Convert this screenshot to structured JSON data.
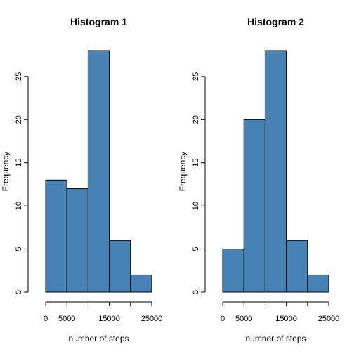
{
  "chart_data": [
    {
      "type": "bar",
      "title": "Histogram 1",
      "xlabel": "number of steps",
      "ylabel": "Frequency",
      "bins": [
        [
          0,
          5000
        ],
        [
          5000,
          10000
        ],
        [
          10000,
          15000
        ],
        [
          15000,
          20000
        ],
        [
          20000,
          25000
        ]
      ],
      "values": [
        13,
        12,
        28,
        6,
        2
      ],
      "xlim": [
        0,
        25000
      ],
      "ylim": [
        0,
        28
      ],
      "xticks": [
        0,
        5000,
        10000,
        15000,
        20000,
        25000
      ],
      "xtick_labels": [
        "0",
        "5000",
        "",
        "15000",
        "",
        "25000"
      ],
      "yticks": [
        0,
        5,
        10,
        15,
        20,
        25
      ],
      "ytick_labels": [
        "0",
        "5",
        "10",
        "15",
        "20",
        "25"
      ],
      "bar_color": "#4682B4",
      "grid": false
    },
    {
      "type": "bar",
      "title": "Histogram 2",
      "xlabel": "number of steps",
      "ylabel": "Frequency",
      "bins": [
        [
          0,
          5000
        ],
        [
          5000,
          10000
        ],
        [
          10000,
          15000
        ],
        [
          15000,
          20000
        ],
        [
          20000,
          25000
        ]
      ],
      "values": [
        5,
        20,
        28,
        6,
        2
      ],
      "xlim": [
        0,
        25000
      ],
      "ylim": [
        0,
        28
      ],
      "xticks": [
        0,
        5000,
        10000,
        15000,
        20000,
        25000
      ],
      "xtick_labels": [
        "0",
        "5000",
        "",
        "15000",
        "",
        "25000"
      ],
      "yticks": [
        0,
        5,
        10,
        15,
        20,
        25
      ],
      "ytick_labels": [
        "0",
        "5",
        "10",
        "15",
        "20",
        "25"
      ],
      "bar_color": "#4682B4",
      "grid": false
    }
  ]
}
